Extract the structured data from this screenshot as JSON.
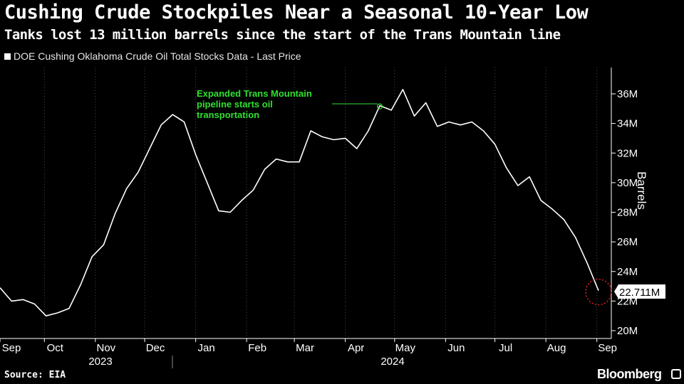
{
  "title": "Cushing Crude Stockpiles Near a Seasonal 10-Year Low",
  "subtitle": "Tanks lost 13 million barrels since the start of the Trans Mountain line",
  "legend_label": "DOE Cushing Oklahoma Crude Oil Total Stocks Data - Last Price",
  "source": "Source: EIA",
  "brand": "Bloomberg",
  "colors": {
    "background": "#000000",
    "line": "#ffffff",
    "annotation": "#2fe02f",
    "marker": "#e02020",
    "grid": "#4a4a4a"
  },
  "chart_data": {
    "type": "line",
    "title": "Cushing Crude Stockpiles Near a Seasonal 10-Year Low",
    "xlabel": "",
    "ylabel": "Barrels",
    "ylim": [
      19.6,
      37.7
    ],
    "yticks": [
      20,
      22,
      24,
      26,
      28,
      30,
      32,
      34,
      36
    ],
    "ytick_labels": [
      "20M",
      "22M",
      "24M",
      "26M",
      "28M",
      "30M",
      "32M",
      "34M",
      "36M"
    ],
    "x_start": 0,
    "x_step": 7,
    "month_ticks": [
      {
        "label": "Sep",
        "day": 0
      },
      {
        "label": "Oct",
        "day": 27
      },
      {
        "label": "Nov",
        "day": 58
      },
      {
        "label": "Dec",
        "day": 88
      },
      {
        "label": "Jan",
        "day": 119
      },
      {
        "label": "Feb",
        "day": 150
      },
      {
        "label": "Mar",
        "day": 179
      },
      {
        "label": "Apr",
        "day": 210
      },
      {
        "label": "May",
        "day": 240
      },
      {
        "label": "Jun",
        "day": 271
      },
      {
        "label": "Jul",
        "day": 301
      },
      {
        "label": "Aug",
        "day": 332
      },
      {
        "label": "Sep",
        "day": 363
      }
    ],
    "years": [
      {
        "label": "2023",
        "day": 58
      },
      {
        "label": "2024",
        "day": 240
      }
    ],
    "year_divider_day": 105,
    "series": [
      {
        "name": "DOE Cushing Oklahoma Crude Oil Total Stocks Data - Last Price",
        "values": [
          22.9,
          22.0,
          22.1,
          21.8,
          21.0,
          21.2,
          21.5,
          23.1,
          25.0,
          25.8,
          27.9,
          29.6,
          30.7,
          32.3,
          33.9,
          34.6,
          34.1,
          31.9,
          30.0,
          28.1,
          28.0,
          28.8,
          29.5,
          30.9,
          31.6,
          31.4,
          31.4,
          33.5,
          33.1,
          32.9,
          33.0,
          32.3,
          33.5,
          35.2,
          34.9,
          36.3,
          34.5,
          35.4,
          33.8,
          34.1,
          33.9,
          34.1,
          33.5,
          32.6,
          31.0,
          29.8,
          30.4,
          28.8,
          28.2,
          27.5,
          26.3,
          24.6,
          22.711
        ]
      }
    ],
    "last_value_label": "22.711M",
    "annotation": {
      "lines": [
        "Expanded Trans Mountain",
        "pipeline starts oil",
        "transportation"
      ],
      "point_index": 33
    }
  }
}
